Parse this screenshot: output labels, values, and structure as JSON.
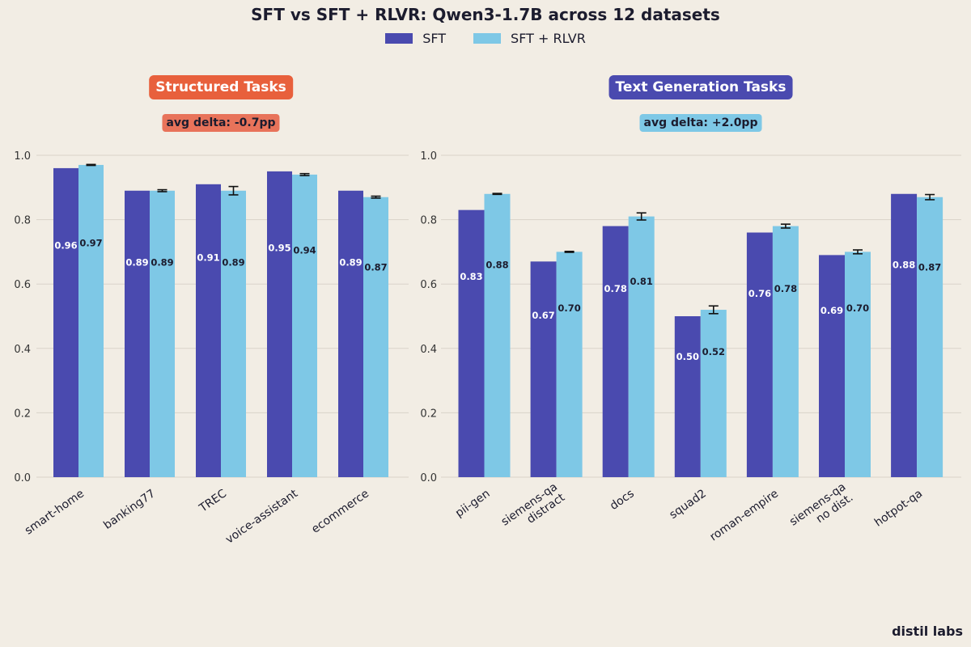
{
  "title": "SFT vs SFT + RLVR: Qwen3-1.7B across 12 datasets",
  "brand": "distil labs",
  "colors": {
    "sft": "#4a4aaf",
    "rlvr": "#7ec8e6",
    "structured": "#e8603c",
    "text_gen": "#4a4aaf",
    "delta_structured": "#e8735a",
    "delta_text": "#7ec8e6",
    "background": "#f2ede4"
  },
  "legend": [
    "SFT",
    "SFT + RLVR"
  ],
  "panels": [
    {
      "title": "Structured Tasks",
      "delta": "avg delta: -0.7pp"
    },
    {
      "title": "Text Generation Tasks",
      "delta": "avg delta: +2.0pp"
    }
  ],
  "chart_data": [
    {
      "type": "bar",
      "title": "Structured Tasks",
      "categories": [
        "smart-home",
        "banking77",
        "TREC",
        "voice-assistant",
        "ecommerce"
      ],
      "series": [
        {
          "name": "SFT",
          "values": [
            0.96,
            0.89,
            0.91,
            0.95,
            0.89
          ]
        },
        {
          "name": "SFT + RLVR",
          "values": [
            0.97,
            0.89,
            0.89,
            0.94,
            0.87
          ],
          "error": [
            0.001,
            0.003,
            0.013,
            0.003,
            0.003
          ]
        }
      ],
      "ylim": [
        0,
        1.0
      ],
      "yticks": [
        "0.0",
        "0.2",
        "0.4",
        "0.6",
        "0.8",
        "1.0"
      ],
      "grid": true
    },
    {
      "type": "bar",
      "title": "Text Generation Tasks",
      "categories": [
        "pii-gen",
        "siemens-qa\ndistract",
        "docs",
        "squad2",
        "roman-empire",
        "siemens-qa\nno dist.",
        "hotpot-qa"
      ],
      "series": [
        {
          "name": "SFT",
          "values": [
            0.83,
            0.67,
            0.78,
            0.5,
            0.76,
            0.69,
            0.88
          ]
        },
        {
          "name": "SFT + RLVR",
          "values": [
            0.88,
            0.7,
            0.81,
            0.52,
            0.78,
            0.7,
            0.87
          ],
          "error": [
            0.001,
            0.001,
            0.011,
            0.012,
            0.006,
            0.006,
            0.008
          ]
        }
      ],
      "ylim": [
        0,
        1.0
      ],
      "yticks": [
        "0.0",
        "0.2",
        "0.4",
        "0.6",
        "0.8",
        "1.0"
      ],
      "grid": true
    }
  ]
}
